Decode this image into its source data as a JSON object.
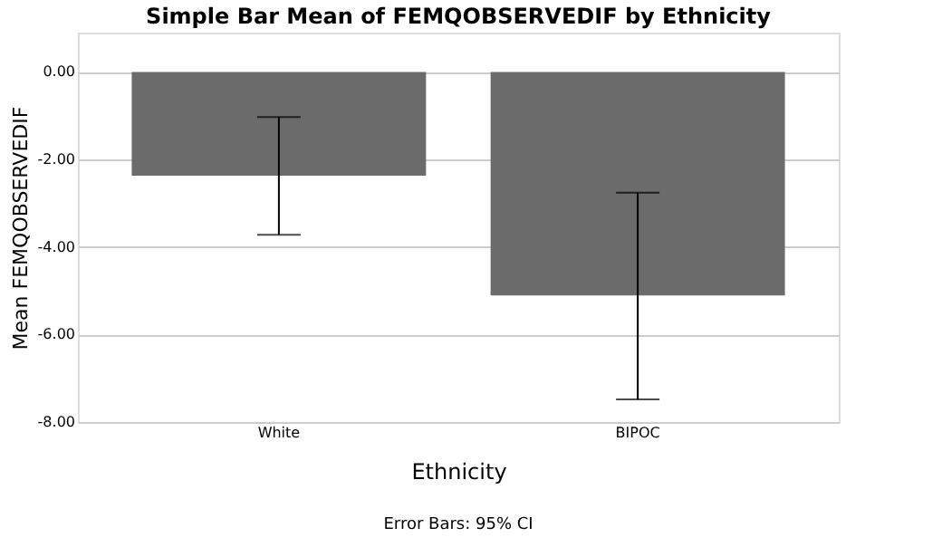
{
  "chart_data": {
    "type": "bar",
    "title": "Simple Bar Mean of FEMQOBSERVEDIF by Ethnicity",
    "xlabel": "Ethnicity",
    "ylabel": "Mean FEMQOBSERVEDIF",
    "categories": [
      "White",
      "BIPOC"
    ],
    "values": [
      -2.37,
      -5.11
    ],
    "errors": [
      [
        -3.72,
        -1.03
      ],
      [
        -7.48,
        -2.76
      ]
    ],
    "color": "#6b6b6b",
    "ylim": [
      -8,
      0.9
    ],
    "yticks": [
      {
        "value": -8,
        "label": "-8.00"
      },
      {
        "value": -6,
        "label": "-6.00"
      },
      {
        "value": -4,
        "label": "-4.00"
      },
      {
        "value": -2,
        "label": "-2.00"
      },
      {
        "value": 0,
        "label": "0.00"
      }
    ],
    "grid": "y",
    "annotations": [
      "Error Bars: 95% CI"
    ]
  }
}
